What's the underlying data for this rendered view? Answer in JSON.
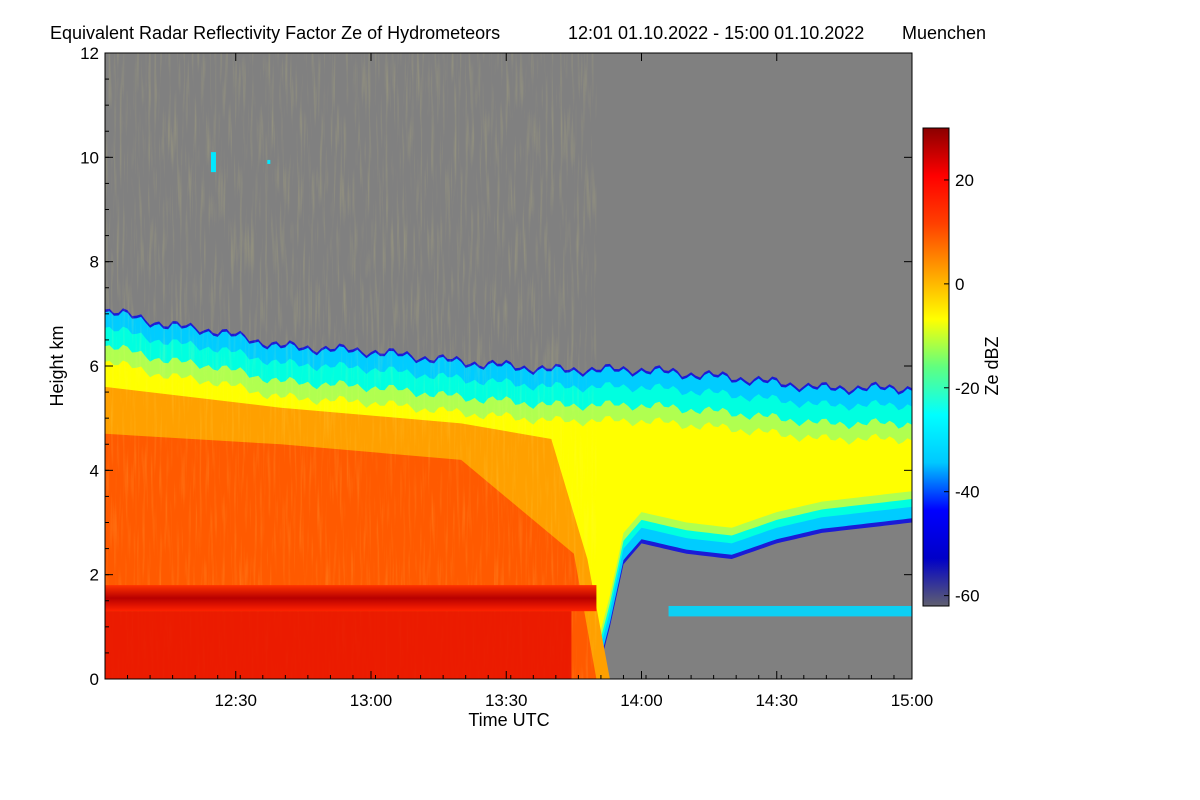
{
  "chart_data": {
    "type": "heatmap",
    "title": "Equivalent Radar Reflectivity Factor Ze of Hydrometeors",
    "period": "12:01 01.10.2022 - 15:00 01.10.2022",
    "location": "Muenchen",
    "xlabel": "Time UTC",
    "ylabel": "Height km",
    "colorbar_label": "Ze dBZ",
    "x_range_minutes": [
      721,
      900
    ],
    "x_ticks": [
      {
        "label": "12:30",
        "minutes": 750
      },
      {
        "label": "13:00",
        "minutes": 780
      },
      {
        "label": "13:30",
        "minutes": 810
      },
      {
        "label": "14:00",
        "minutes": 840
      },
      {
        "label": "14:30",
        "minutes": 870
      },
      {
        "label": "15:00",
        "minutes": 900
      }
    ],
    "ylim": [
      0,
      12
    ],
    "y_ticks": [
      0,
      2,
      4,
      6,
      8,
      10,
      12
    ],
    "clim": [
      -62,
      30
    ],
    "c_ticks": [
      20,
      0,
      -20,
      -40,
      -60
    ],
    "colormap": [
      "#606070",
      "#0000c8",
      "#0000ff",
      "#00c8ff",
      "#00ffff",
      "#60ff80",
      "#ffff00",
      "#ffa000",
      "#ff4000",
      "#ff0000",
      "#8b0000"
    ],
    "no_signal_color": "#808080",
    "cloud_top_km": [
      [
        721,
        7.1
      ],
      [
        735,
        6.8
      ],
      [
        745,
        6.7
      ],
      [
        760,
        6.4
      ],
      [
        780,
        6.3
      ],
      [
        800,
        6.1
      ],
      [
        820,
        5.95
      ],
      [
        840,
        5.95
      ],
      [
        860,
        5.8
      ],
      [
        880,
        5.6
      ],
      [
        900,
        5.6
      ]
    ],
    "cloud_base_km": [
      [
        721,
        0
      ],
      [
        830,
        0
      ],
      [
        833,
        1.0
      ],
      [
        836,
        2.2
      ],
      [
        840,
        2.6
      ],
      [
        850,
        2.4
      ],
      [
        860,
        2.3
      ],
      [
        870,
        2.6
      ],
      [
        880,
        2.8
      ],
      [
        890,
        2.9
      ],
      [
        900,
        3.0
      ]
    ],
    "features": [
      {
        "name": "melting layer bright band",
        "height_km": [
          1.3,
          1.8
        ],
        "minutes": [
          721,
          830
        ],
        "ze_dbz": 28
      },
      {
        "name": "core precipitation",
        "height_km": [
          0,
          5.0
        ],
        "minutes": [
          721,
          830
        ],
        "ze_dbz": 15
      },
      {
        "name": "low cloud layer",
        "height_km": [
          1.2,
          1.4
        ],
        "minutes": [
          846,
          900
        ],
        "ze_dbz": -25
      }
    ]
  }
}
